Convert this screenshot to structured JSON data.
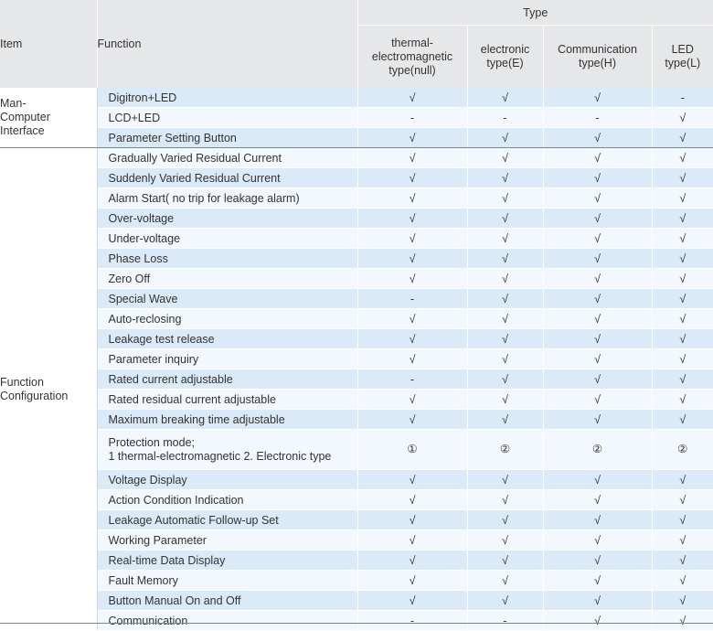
{
  "header": {
    "item": "Item",
    "function": "Function",
    "type": "Type",
    "types": [
      {
        "line1": "thermal-",
        "line2": "electromagnetic",
        "line3": "type(null)"
      },
      {
        "line1": "electronic",
        "line2": "type(E)"
      },
      {
        "line1": "Communication",
        "line2": "type(H)"
      },
      {
        "line1": "LED",
        "line2": "type(L)"
      }
    ]
  },
  "groups": {
    "man_computer": {
      "line1": "Man-",
      "line2": "Computer",
      "line3": "Interface"
    },
    "function_config": {
      "line1": "Function",
      "line2": "Configuration"
    }
  },
  "rows": [
    {
      "name": "Digitron+LED",
      "values": [
        "√",
        "√",
        "√",
        "-"
      ]
    },
    {
      "name": "LCD+LED",
      "values": [
        "-",
        "-",
        "-",
        "√"
      ]
    },
    {
      "name": "Parameter Setting Button",
      "values": [
        "√",
        "√",
        "√",
        "√"
      ]
    },
    {
      "name": "Gradually Varied Residual Current",
      "values": [
        "√",
        "√",
        "√",
        "√"
      ]
    },
    {
      "name": "Suddenly Varied Residual Current",
      "values": [
        "√",
        "√",
        "√",
        "√"
      ]
    },
    {
      "name": "Alarm Start( no trip for leakage alarm)",
      "values": [
        "√",
        "√",
        "√",
        "√"
      ]
    },
    {
      "name": "Over-voltage",
      "values": [
        "√",
        "√",
        "√",
        "√"
      ]
    },
    {
      "name": "Under-voltage",
      "values": [
        "√",
        "√",
        "√",
        "√"
      ]
    },
    {
      "name": "Phase Loss",
      "values": [
        "√",
        "√",
        "√",
        "√"
      ]
    },
    {
      "name": "Zero Off",
      "values": [
        "√",
        "√",
        "√",
        "√"
      ]
    },
    {
      "name": "Special Wave",
      "values": [
        "-",
        "√",
        "√",
        "√"
      ]
    },
    {
      "name": "Auto-reclosing",
      "values": [
        "√",
        "√",
        "√",
        "√"
      ]
    },
    {
      "name": "Leakage test release",
      "values": [
        "√",
        "√",
        "√",
        "√"
      ]
    },
    {
      "name": "Parameter inquiry",
      "values": [
        "√",
        "√",
        "√",
        "√"
      ]
    },
    {
      "name": "Rated current adjustable",
      "values": [
        "-",
        "√",
        "√",
        "√"
      ]
    },
    {
      "name": "Rated residual current adjustable",
      "values": [
        "√",
        "√",
        "√",
        "√"
      ]
    },
    {
      "name": "Maximum breaking time adjustable",
      "values": [
        "√",
        "√",
        "√",
        "√"
      ]
    },
    {
      "name": "Protection mode;",
      "name2": "1 thermal-electromagnetic 2. Electronic type",
      "values": [
        "①",
        "②",
        "②",
        "②"
      ]
    },
    {
      "name": "Voltage Display",
      "values": [
        "√",
        "√",
        "√",
        "√"
      ]
    },
    {
      "name": "Action Condition Indication",
      "values": [
        "√",
        "√",
        "√",
        "√"
      ]
    },
    {
      "name": "Leakage Automatic Follow-up Set",
      "values": [
        "√",
        "√",
        "√",
        "√"
      ]
    },
    {
      "name": "Working Parameter",
      "values": [
        "√",
        "√",
        "√",
        "√"
      ]
    },
    {
      "name": "Real-time Data Display",
      "values": [
        "√",
        "√",
        "√",
        "√"
      ]
    },
    {
      "name": "Fault Memory",
      "values": [
        "√",
        "√",
        "√",
        "√"
      ]
    },
    {
      "name": "Button Manual On and Off",
      "values": [
        "√",
        "√",
        "√",
        "√"
      ]
    },
    {
      "name": "Communication",
      "values": [
        "-",
        "-",
        "√",
        "√"
      ]
    }
  ]
}
